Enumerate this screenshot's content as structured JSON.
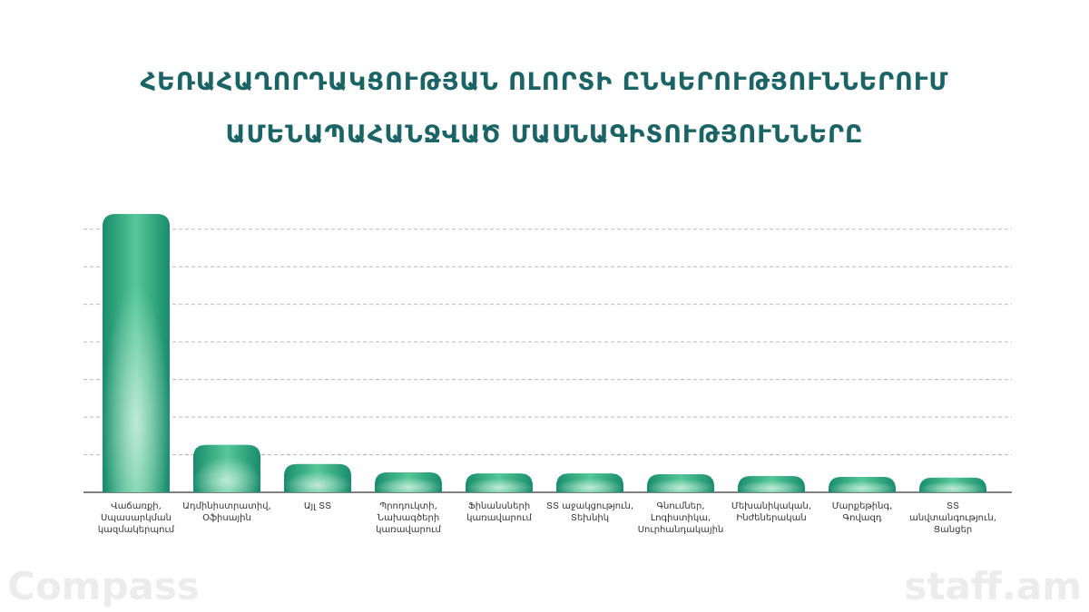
{
  "chart_data": {
    "type": "bar",
    "title": "ՀԵՌԱՀԱՂՈՐԴԱԿՑՈՒԹՅԱՆ ՈԼՈՐՏԻ ԸՆԿԵՐՈՒԹՅՈՒՆՆԵՐՈՒՄ ԱՄԵՆԱՊԱՀԱՆՋՎԱԾ ՄԱՍՆԱԳԻՏՈՒԹՅՈՒՆՆԵՐԸ",
    "categories": [
      "Վաճառքի, Սպասարկման կազմակերպում",
      "Ադմինիստրատիվ, Օֆիսային",
      "Այլ ՏՏ",
      "Պրոդուկտի, Նախագծերի կառավարում",
      "Ֆինանսների կառավարում",
      "ՏՏ աջակցություն, Տեխնիկ",
      "Գնումներ, Լոգիստիկա, Սուրհանդակային",
      "Մեխանիկական, Ինժեներական",
      "Մարքեթինգ, Գովազդ",
      "ՏՏ անվտանգություն, Ցանցեր"
    ],
    "values": [
      7.4,
      1.26,
      0.75,
      0.53,
      0.5,
      0.5,
      0.48,
      0.43,
      0.41,
      0.39
    ],
    "color": "#1f9a76",
    "ylim": [
      0,
      7.5
    ],
    "yticks": [
      1,
      2,
      3,
      4,
      5,
      6,
      7
    ],
    "grid": true,
    "tick_labels": false
  },
  "logos": {
    "left": "Compass",
    "right": "staff.am"
  }
}
